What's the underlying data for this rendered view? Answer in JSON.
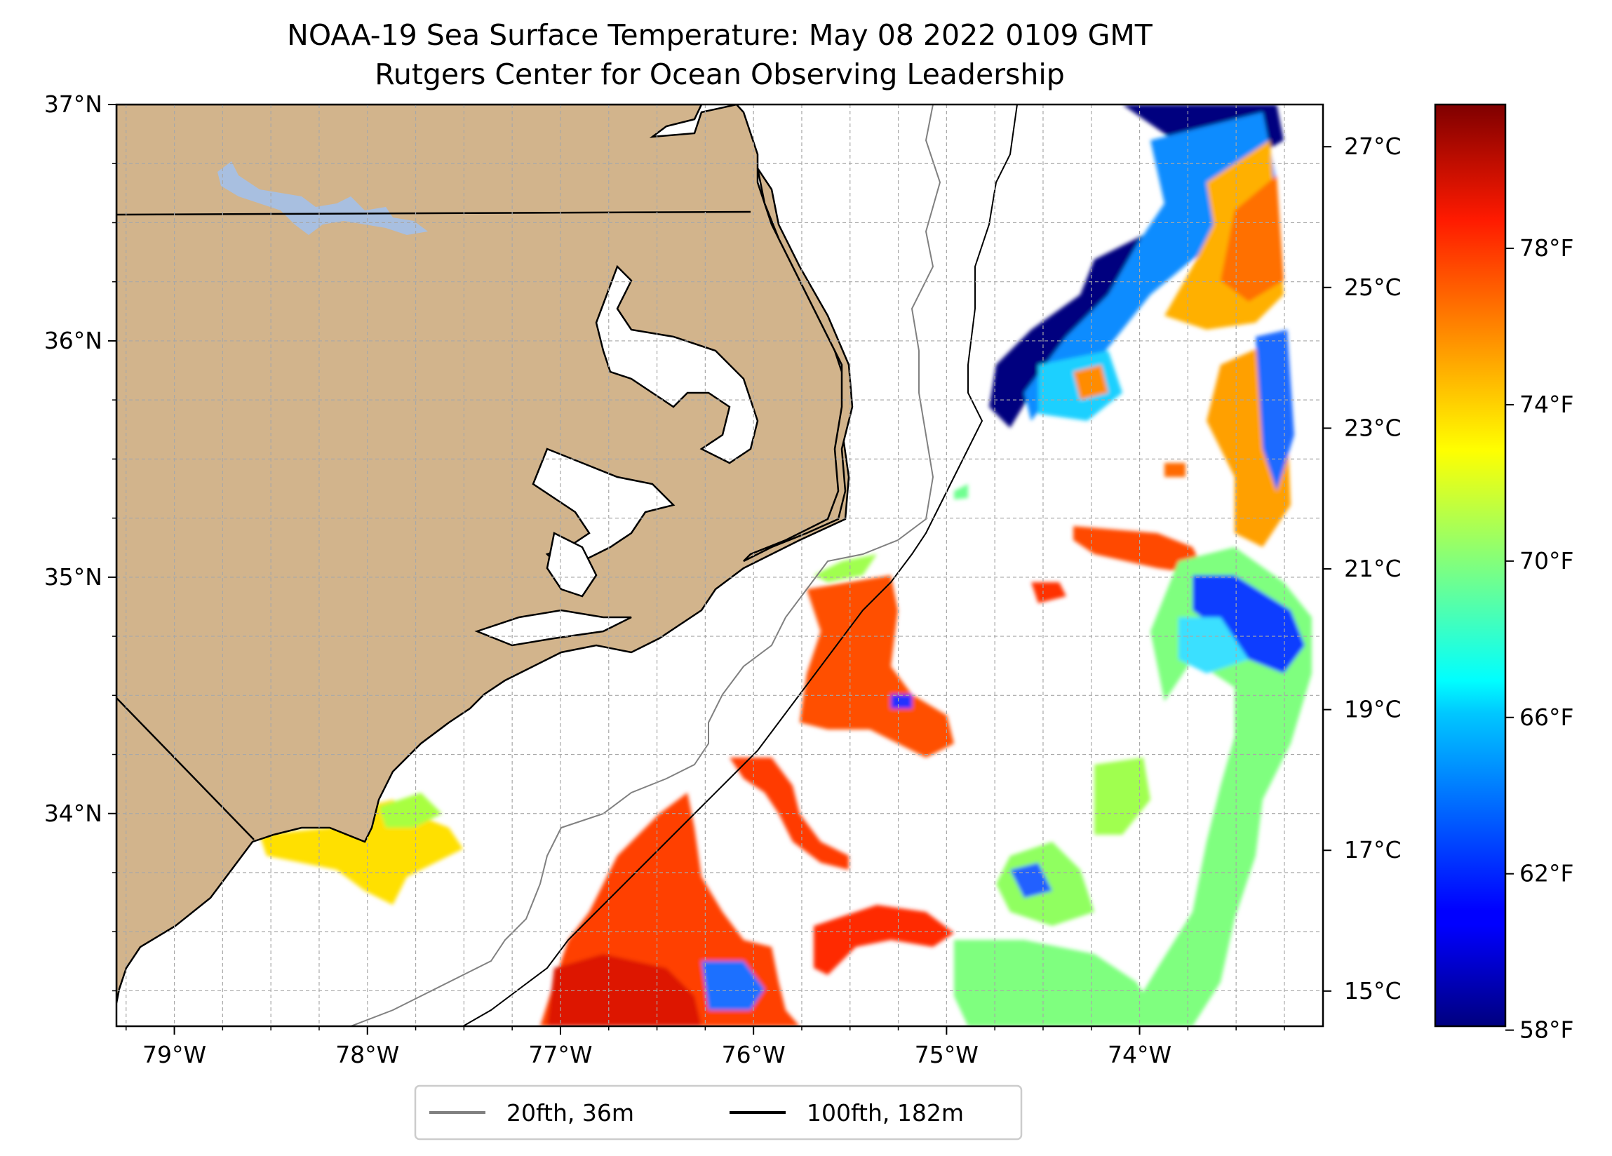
{
  "title": {
    "line1": "NOAA-19 Sea Surface Temperature: May 08 2022 0109 GMT",
    "line2": "Rutgers Center for Ocean Observing Leadership"
  },
  "map": {
    "lon_range": [
      -79.3,
      -73.05
    ],
    "lat_range": [
      33.1,
      37.0
    ],
    "x_ticks": [
      {
        "value": -79,
        "label": "79°W"
      },
      {
        "value": -78,
        "label": "78°W"
      },
      {
        "value": -77,
        "label": "77°W"
      },
      {
        "value": -76,
        "label": "76°W"
      },
      {
        "value": -75,
        "label": "75°W"
      },
      {
        "value": -74,
        "label": "74°W"
      }
    ],
    "y_ticks": [
      {
        "value": 37,
        "label": "37°N"
      },
      {
        "value": 36,
        "label": "36°N"
      },
      {
        "value": 35,
        "label": "35°N"
      },
      {
        "value": 34,
        "label": "34°N"
      }
    ],
    "colors": {
      "land": "#d2b48c",
      "lake": "#a8bfe0",
      "grid": "#b0b0b0",
      "isobath_20": "#808080",
      "isobath_100": "#000000"
    }
  },
  "colorbar": {
    "min_c": 14.5,
    "max_c": 27.6,
    "celsius_ticks": [
      {
        "value": 27,
        "label": "27°C"
      },
      {
        "value": 25,
        "label": "25°C"
      },
      {
        "value": 23,
        "label": "23°C"
      },
      {
        "value": 21,
        "label": "21°C"
      },
      {
        "value": 19,
        "label": "19°C"
      },
      {
        "value": 17,
        "label": "17°C"
      },
      {
        "value": 15,
        "label": "15°C"
      }
    ],
    "fahrenheit_ticks": [
      {
        "value": 78,
        "label": "78°F"
      },
      {
        "value": 74,
        "label": "74°F"
      },
      {
        "value": 70,
        "label": "70°F"
      },
      {
        "value": 66,
        "label": "66°F"
      },
      {
        "value": 62,
        "label": "62°F"
      },
      {
        "value": 58,
        "label": "58°F"
      }
    ],
    "colormap": "jet"
  },
  "legend": {
    "placement": "bottom-center",
    "items": [
      {
        "label": "20fth, 36m",
        "color": "#808080"
      },
      {
        "label": "100fth, 182m",
        "color": "#000000"
      }
    ]
  }
}
